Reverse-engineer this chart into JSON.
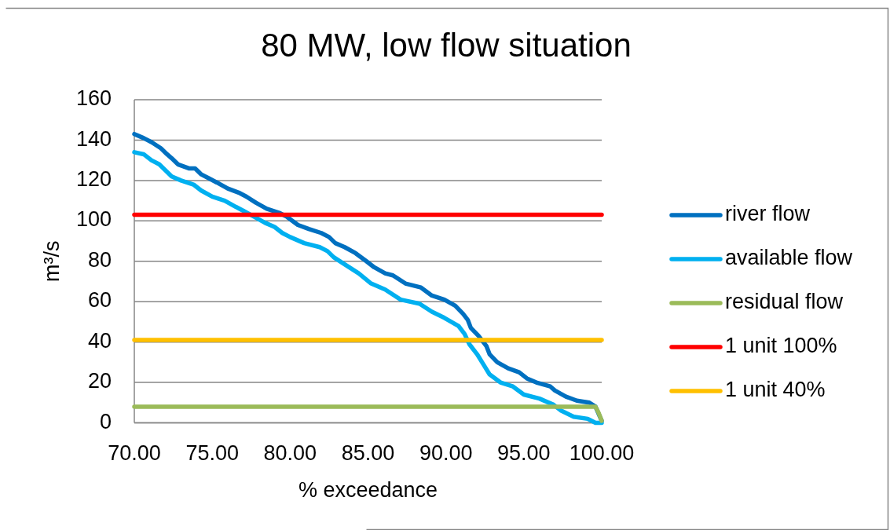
{
  "chart_data": {
    "type": "line",
    "title": "80 MW, low flow situation",
    "xlabel": "% exceedance",
    "ylabel": "m³/s",
    "xlim": [
      70,
      100
    ],
    "xticks": [
      {
        "value": 70,
        "label": "70.00"
      },
      {
        "value": 75,
        "label": "75.00"
      },
      {
        "value": 80,
        "label": "80.00"
      },
      {
        "value": 85,
        "label": "85.00"
      },
      {
        "value": 90,
        "label": "90.00"
      },
      {
        "value": 95,
        "label": "95.00"
      },
      {
        "value": 100,
        "label": "100.00"
      }
    ],
    "ylim": [
      0,
      160
    ],
    "yticks": [
      0,
      20,
      40,
      60,
      80,
      100,
      120,
      140,
      160
    ],
    "grid": "y",
    "legend": "right",
    "line_style": "solid",
    "series": [
      {
        "name": "river flow",
        "color": "#0070c0",
        "x": [
          70,
          70.6,
          71.1,
          71.7,
          72.1,
          72.4,
          72.8,
          73.5,
          73.9,
          74.3,
          74.8,
          75.3,
          76,
          76.7,
          77.2,
          77.8,
          78.5,
          79.3,
          79.8,
          80.5,
          81.2,
          82,
          82.5,
          82.9,
          83.5,
          84.2,
          84.9,
          85.4,
          86.1,
          86.6,
          87.4,
          88.4,
          89.1,
          89.9,
          90.6,
          91.1,
          91.4,
          91.6,
          92.1,
          92.6,
          92.8,
          93.3,
          94,
          94.7,
          95.2,
          95.8,
          96.7,
          97,
          97.7,
          98.4,
          99.2,
          99.6,
          100
        ],
        "values": [
          143,
          141,
          139,
          136,
          133,
          131,
          128,
          126,
          126,
          123,
          121,
          119,
          116,
          114,
          112,
          109,
          106,
          104,
          102,
          98,
          96,
          94,
          92,
          89,
          87,
          84,
          80,
          77,
          74,
          73,
          69,
          67,
          63,
          61,
          58,
          54,
          51,
          47,
          43,
          38,
          34,
          30,
          27,
          25,
          22,
          20,
          18,
          16,
          13,
          11,
          10,
          8,
          1
        ]
      },
      {
        "name": "available flow",
        "color": "#00b0f0",
        "x": [
          70,
          70.6,
          71.1,
          71.6,
          72,
          72.4,
          73,
          73.8,
          74.3,
          75,
          75.8,
          76.5,
          77,
          77.7,
          78.4,
          79,
          79.5,
          80,
          80.9,
          81.9,
          82.4,
          82.8,
          83.4,
          84.4,
          85.2,
          86.1,
          87.1,
          88.3,
          89.1,
          89.9,
          90.8,
          91.2,
          91.5,
          92,
          92.4,
          92.8,
          93.5,
          94.3,
          95,
          96,
          96.9,
          97.4,
          98.2,
          99.1,
          99.6,
          100
        ],
        "values": [
          134,
          133,
          130,
          128,
          125,
          122,
          120,
          118,
          115,
          112,
          110,
          107,
          105,
          102,
          99,
          97,
          94,
          92,
          89,
          87,
          85,
          82,
          79,
          74,
          69,
          66,
          61,
          59,
          55,
          52,
          48,
          44,
          39,
          34,
          29,
          24,
          20,
          18,
          14,
          12,
          9,
          6,
          3,
          2,
          0,
          0
        ]
      },
      {
        "name": "residual flow",
        "color": "#9bbb59",
        "x": [
          70,
          99.6,
          99.8,
          100
        ],
        "values": [
          8,
          8,
          5,
          1
        ]
      },
      {
        "name": "1 unit 100%",
        "color": "#ff0000",
        "x": [
          70,
          100
        ],
        "values": [
          103,
          103
        ]
      },
      {
        "name": "1 unit 40%",
        "color": "#ffc000",
        "x": [
          70,
          100
        ],
        "values": [
          41,
          41
        ]
      }
    ]
  }
}
